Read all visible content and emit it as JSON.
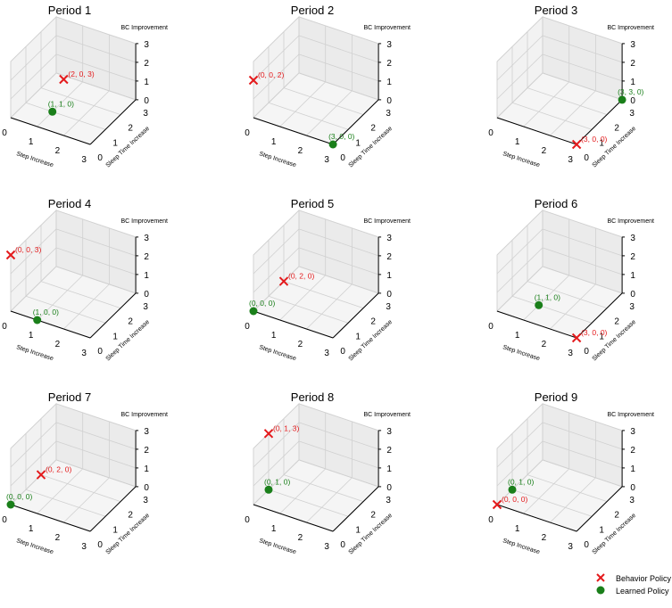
{
  "chart_data": {
    "type": "scatter",
    "subtype": "3d-scatter-grid",
    "xlabel": "Step Increase",
    "ylabel": "Sleep Time Increase",
    "zlabel": "BC Improvement",
    "xlim": [
      0,
      3
    ],
    "ylim": [
      0,
      3
    ],
    "zlim": [
      0,
      3
    ],
    "ticks": [
      "0",
      "1",
      "2",
      "3"
    ],
    "grid": true,
    "legend": {
      "placement": "bottom-right",
      "entries": [
        {
          "name": "Behavior Policy",
          "marker": "x",
          "color": "#e41a1c"
        },
        {
          "name": "Learned Policy",
          "marker": "o",
          "color": "#1a7f1a"
        }
      ]
    },
    "panels": [
      {
        "title": "Period 1",
        "behavior": {
          "point": [
            2,
            0,
            3
          ],
          "label": "(2, 0, 3)"
        },
        "learned": {
          "point": [
            1,
            1,
            0
          ],
          "label": "(1, 1, 0)"
        }
      },
      {
        "title": "Period 2",
        "behavior": {
          "point": [
            0,
            0,
            2
          ],
          "label": "(0, 0, 2)"
        },
        "learned": {
          "point": [
            3,
            0,
            0
          ],
          "label": "(3, 0, 0)"
        }
      },
      {
        "title": "Period 3",
        "behavior": {
          "point": [
            3,
            0,
            0
          ],
          "label": "(3, 0, 0)"
        },
        "learned": {
          "point": [
            3,
            3,
            0
          ],
          "label": "(3, 3, 0)"
        }
      },
      {
        "title": "Period 4",
        "behavior": {
          "point": [
            0,
            0,
            3
          ],
          "label": "(0, 0, 3)"
        },
        "learned": {
          "point": [
            1,
            0,
            0
          ],
          "label": "(1, 0, 0)"
        }
      },
      {
        "title": "Period 5",
        "behavior": {
          "point": [
            0,
            2,
            0
          ],
          "label": "(0, 2, 0)"
        },
        "learned": {
          "point": [
            0,
            0,
            0
          ],
          "label": "(0, 0, 0)"
        }
      },
      {
        "title": "Period 6",
        "behavior": {
          "point": [
            3,
            0,
            0
          ],
          "label": "(3, 0, 0)"
        },
        "learned": {
          "point": [
            1,
            1,
            0
          ],
          "label": "(1, 1, 0)"
        }
      },
      {
        "title": "Period 7",
        "behavior": {
          "point": [
            0,
            2,
            0
          ],
          "label": "(0, 2, 0)"
        },
        "learned": {
          "point": [
            0,
            0,
            0
          ],
          "label": "(0, 0, 0)"
        }
      },
      {
        "title": "Period 8",
        "behavior": {
          "point": [
            0,
            1,
            3
          ],
          "label": "(0, 1, 3)"
        },
        "learned": {
          "point": [
            0,
            1,
            0
          ],
          "label": "(0, 1, 0)"
        }
      },
      {
        "title": "Period 9",
        "behavior": {
          "point": [
            0,
            0,
            0
          ],
          "label": "(0, 0, 0)"
        },
        "learned": {
          "point": [
            0,
            1,
            0
          ],
          "label": "(0, 1, 0)"
        }
      }
    ]
  }
}
